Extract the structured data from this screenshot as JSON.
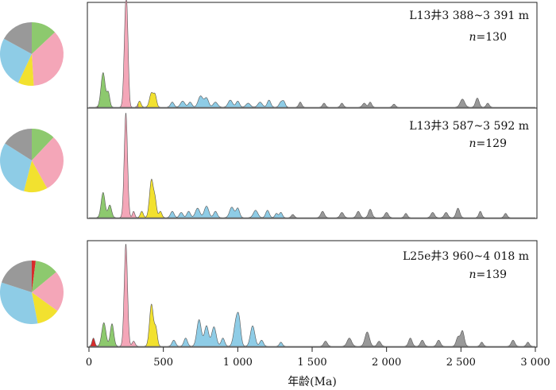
{
  "chart_data": {
    "type": "area",
    "xlabel": "年龄(Ma)",
    "xlim": [
      0,
      3000
    ],
    "x_ticks": [
      {
        "value": 0,
        "label": "0"
      },
      {
        "value": 500,
        "label": "500"
      },
      {
        "value": 1000,
        "label": "1 000"
      },
      {
        "value": 1500,
        "label": "1 500"
      },
      {
        "value": 2000,
        "label": "2 000"
      },
      {
        "value": 2500,
        "label": "2 500"
      },
      {
        "value": 3000,
        "label": "3 000"
      }
    ],
    "age_groups": [
      {
        "range": [
          0,
          60
        ],
        "color": "#d92b2b"
      },
      {
        "range": [
          60,
          190
        ],
        "color": "#8dc96e"
      },
      {
        "range": [
          190,
          330
        ],
        "color": "#f4a6b8"
      },
      {
        "range": [
          330,
          520
        ],
        "color": "#f2e12f"
      },
      {
        "range": [
          520,
          1330
        ],
        "color": "#8ecce6"
      },
      {
        "range": [
          1330,
          3000
        ],
        "color": "#999999"
      }
    ],
    "panels": [
      {
        "sample": "L13井3 388~3 391 m",
        "n_prefix": "n",
        "n_value": "=130",
        "pie": [
          {
            "color": "#8dc96e",
            "fraction": 0.13
          },
          {
            "color": "#f4a6b8",
            "fraction": 0.36
          },
          {
            "color": "#f2e12f",
            "fraction": 0.08
          },
          {
            "color": "#8ecce6",
            "fraction": 0.26
          },
          {
            "color": "#999999",
            "fraction": 0.17
          }
        ],
        "peaks": [
          [
            95,
            0.34,
            14
          ],
          [
            130,
            0.14,
            10
          ],
          [
            248,
            1.0,
            11
          ],
          [
            260,
            0.25,
            8
          ],
          [
            340,
            0.06,
            10
          ],
          [
            420,
            0.14,
            13
          ],
          [
            445,
            0.11,
            10
          ],
          [
            560,
            0.05,
            12
          ],
          [
            630,
            0.06,
            15
          ],
          [
            680,
            0.05,
            12
          ],
          [
            750,
            0.11,
            16
          ],
          [
            790,
            0.09,
            14
          ],
          [
            850,
            0.05,
            15
          ],
          [
            950,
            0.07,
            15
          ],
          [
            1000,
            0.06,
            12
          ],
          [
            1070,
            0.04,
            15
          ],
          [
            1150,
            0.05,
            15
          ],
          [
            1210,
            0.07,
            12
          ],
          [
            1290,
            0.05,
            12
          ],
          [
            1310,
            0.05,
            10
          ],
          [
            1420,
            0.05,
            10
          ],
          [
            1580,
            0.04,
            10
          ],
          [
            1700,
            0.04,
            10
          ],
          [
            1850,
            0.04,
            12
          ],
          [
            1890,
            0.05,
            10
          ],
          [
            2050,
            0.03,
            10
          ],
          [
            2510,
            0.08,
            15
          ],
          [
            2610,
            0.09,
            12
          ],
          [
            2680,
            0.04,
            10
          ]
        ]
      },
      {
        "sample": "L13井3 587~3 592 m",
        "n_prefix": "n",
        "n_value": "=129",
        "pie": [
          {
            "color": "#8dc96e",
            "fraction": 0.12
          },
          {
            "color": "#f4a6b8",
            "fraction": 0.3
          },
          {
            "color": "#f2e12f",
            "fraction": 0.12
          },
          {
            "color": "#8ecce6",
            "fraction": 0.3
          },
          {
            "color": "#999999",
            "fraction": 0.16
          }
        ],
        "peaks": [
          [
            95,
            0.24,
            13
          ],
          [
            140,
            0.12,
            12
          ],
          [
            248,
            1.0,
            11
          ],
          [
            300,
            0.06,
            8
          ],
          [
            355,
            0.06,
            10
          ],
          [
            420,
            0.36,
            13
          ],
          [
            445,
            0.15,
            10
          ],
          [
            480,
            0.06,
            10
          ],
          [
            560,
            0.06,
            12
          ],
          [
            620,
            0.05,
            12
          ],
          [
            670,
            0.06,
            12
          ],
          [
            730,
            0.09,
            15
          ],
          [
            790,
            0.11,
            15
          ],
          [
            850,
            0.06,
            12
          ],
          [
            960,
            0.1,
            15
          ],
          [
            1000,
            0.09,
            12
          ],
          [
            1120,
            0.07,
            15
          ],
          [
            1200,
            0.07,
            12
          ],
          [
            1260,
            0.04,
            10
          ],
          [
            1290,
            0.05,
            10
          ],
          [
            1370,
            0.03,
            10
          ],
          [
            1570,
            0.06,
            12
          ],
          [
            1700,
            0.05,
            12
          ],
          [
            1810,
            0.06,
            12
          ],
          [
            1890,
            0.08,
            12
          ],
          [
            2000,
            0.05,
            12
          ],
          [
            2130,
            0.04,
            10
          ],
          [
            2310,
            0.05,
            12
          ],
          [
            2400,
            0.05,
            12
          ],
          [
            2480,
            0.09,
            12
          ],
          [
            2630,
            0.06,
            10
          ],
          [
            2800,
            0.04,
            10
          ]
        ]
      },
      {
        "sample": "L25e井3 960~4 018 m",
        "n_prefix": "n",
        "n_value": "=139",
        "pie": [
          {
            "color": "#d92b2b",
            "fraction": 0.02
          },
          {
            "color": "#8dc96e",
            "fraction": 0.12
          },
          {
            "color": "#f4a6b8",
            "fraction": 0.21
          },
          {
            "color": "#f2e12f",
            "fraction": 0.12
          },
          {
            "color": "#8ecce6",
            "fraction": 0.33
          },
          {
            "color": "#999999",
            "fraction": 0.2
          }
        ],
        "peaks": [
          [
            30,
            0.08,
            9
          ],
          [
            100,
            0.23,
            14
          ],
          [
            155,
            0.22,
            12
          ],
          [
            248,
            1.0,
            11
          ],
          [
            300,
            0.05,
            10
          ],
          [
            420,
            0.41,
            13
          ],
          [
            450,
            0.17,
            10
          ],
          [
            570,
            0.06,
            12
          ],
          [
            650,
            0.08,
            12
          ],
          [
            740,
            0.26,
            15
          ],
          [
            790,
            0.2,
            14
          ],
          [
            840,
            0.19,
            15
          ],
          [
            900,
            0.08,
            12
          ],
          [
            990,
            0.25,
            16
          ],
          [
            1010,
            0.18,
            12
          ],
          [
            1100,
            0.2,
            15
          ],
          [
            1160,
            0.06,
            12
          ],
          [
            1290,
            0.04,
            10
          ],
          [
            1590,
            0.05,
            12
          ],
          [
            1750,
            0.08,
            15
          ],
          [
            1870,
            0.14,
            15
          ],
          [
            1950,
            0.05,
            12
          ],
          [
            2160,
            0.08,
            12
          ],
          [
            2240,
            0.06,
            12
          ],
          [
            2350,
            0.06,
            12
          ],
          [
            2480,
            0.09,
            12
          ],
          [
            2510,
            0.15,
            12
          ],
          [
            2640,
            0.04,
            10
          ],
          [
            2850,
            0.06,
            12
          ],
          [
            2950,
            0.04,
            10
          ]
        ]
      }
    ]
  }
}
